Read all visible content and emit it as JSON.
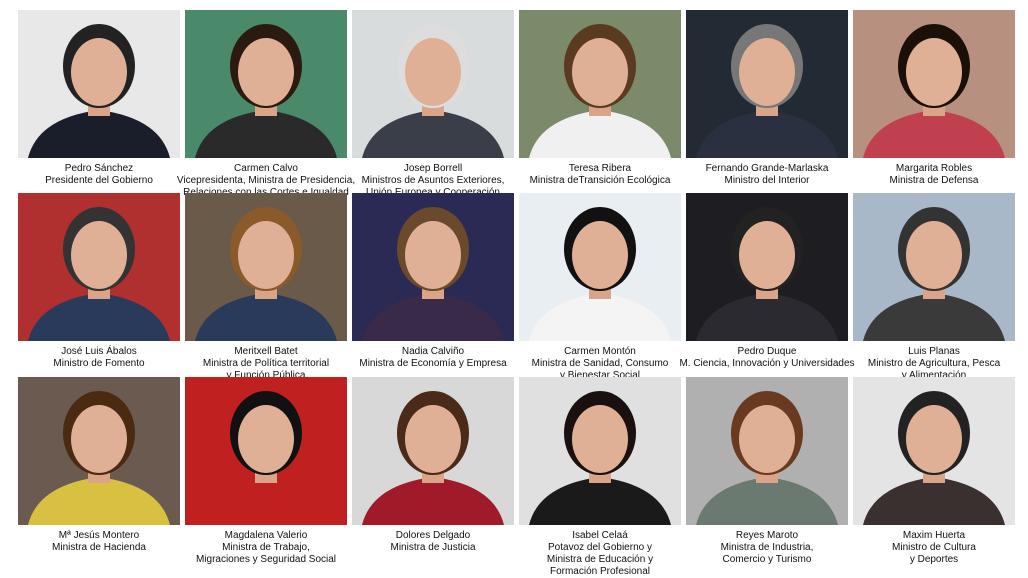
{
  "people": [
    {
      "name": "Pedro Sánchez",
      "role": [
        "Presidente del Gobierno"
      ]
    },
    {
      "name": "Carmen Calvo",
      "role": [
        "Vicepresidenta, Ministra de Presidencia,",
        "Relaciones con las Cortes  e Igualdad"
      ]
    },
    {
      "name": "Josep Borrell",
      "role": [
        "Ministros de Asuntos Exteriores,",
        "Unión Europea  y Cooperación"
      ]
    },
    {
      "name": "Teresa Ribera",
      "role": [
        "Ministra deTransición Ecológica"
      ]
    },
    {
      "name": "Fernando Grande-Marlaska",
      "role": [
        "Ministro del Interior"
      ]
    },
    {
      "name": "Margarita Robles",
      "role": [
        "Ministra de  Defensa"
      ]
    },
    {
      "name": "José Luis Ábalos",
      "role": [
        "Ministro de Fomento"
      ]
    },
    {
      "name": "Meritxell Batet",
      "role": [
        "Ministra de Política territorial",
        "y Función Pública"
      ]
    },
    {
      "name": "Nadia Calviño",
      "role": [
        "Ministra de Economía y Empresa"
      ]
    },
    {
      "name": "Carmen Montón",
      "role": [
        "Ministra de Sanidad, Consumo",
        "y Bienestar Social"
      ]
    },
    {
      "name": "Pedro Duque",
      "role": [
        "M. Ciencia, Innovación y Universidades"
      ]
    },
    {
      "name": "Luis Planas",
      "role": [
        "Ministro de Agricultura, Pesca",
        "y Alimentación"
      ]
    },
    {
      "name": "Mª Jesús Montero",
      "role": [
        "Ministra de Hacienda"
      ]
    },
    {
      "name": "Magdalena Valerio",
      "role": [
        "Ministra de Trabajo,",
        "Migraciones y Seguridad Social"
      ]
    },
    {
      "name": "Dolores Delgado",
      "role": [
        "Ministra de Justicia"
      ]
    },
    {
      "name": "Isabel Celaá",
      "role": [
        "Potavoz del Gobierno y",
        "Ministra de Educación y",
        "Formación Profesional"
      ]
    },
    {
      "name": "Reyes Maroto",
      "role": [
        "Ministra de Industria,",
        "Comercio y Turismo"
      ]
    },
    {
      "name": "Maxim Huerta",
      "role": [
        "Ministro de Cultura",
        "y Deportes"
      ]
    }
  ]
}
